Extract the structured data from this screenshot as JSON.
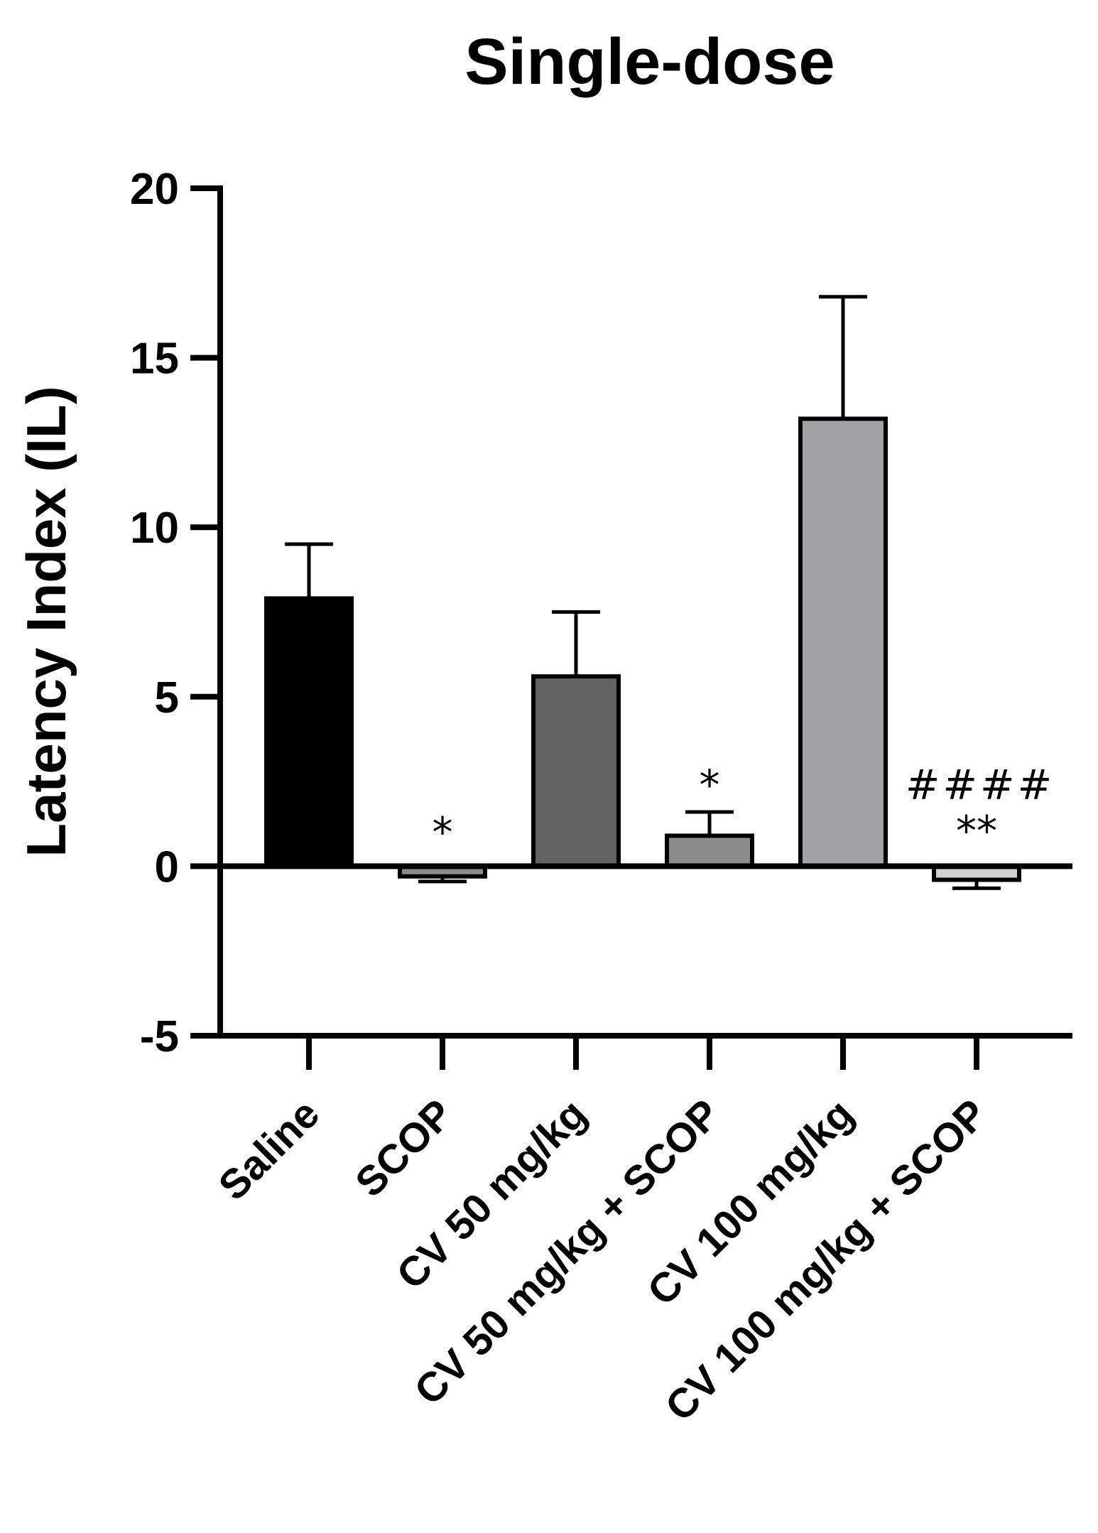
{
  "chart_data": {
    "type": "bar",
    "title": "Single-dose",
    "xlabel": "",
    "ylabel": "Latency Index (IL)",
    "ylim": [
      -5,
      20
    ],
    "yticks": [
      "20",
      "15",
      "10",
      "5",
      "0",
      "-5"
    ],
    "ytick_values": [
      20,
      15,
      10,
      5,
      0,
      -5
    ],
    "categories": [
      "Saline",
      "SCOP",
      "CV 50 mg/kg",
      "CV 50 mg/kg + SCOP",
      "CV 100 mg/kg",
      "CV 100 mg/kg + SCOP"
    ],
    "values": [
      7.9,
      -0.3,
      5.6,
      0.9,
      13.2,
      -0.4
    ],
    "errors": [
      1.6,
      0.15,
      1.9,
      0.7,
      3.6,
      0.25
    ],
    "colors": [
      "#000000",
      "#8c8c8c",
      "#626262",
      "#8c8c8c",
      "#a3a3a6",
      "#d0d0d0"
    ],
    "annotations": [
      "",
      "*",
      "",
      "*",
      "",
      "**"
    ],
    "annotations_hash": [
      "",
      "",
      "",
      "",
      "",
      "####"
    ]
  }
}
